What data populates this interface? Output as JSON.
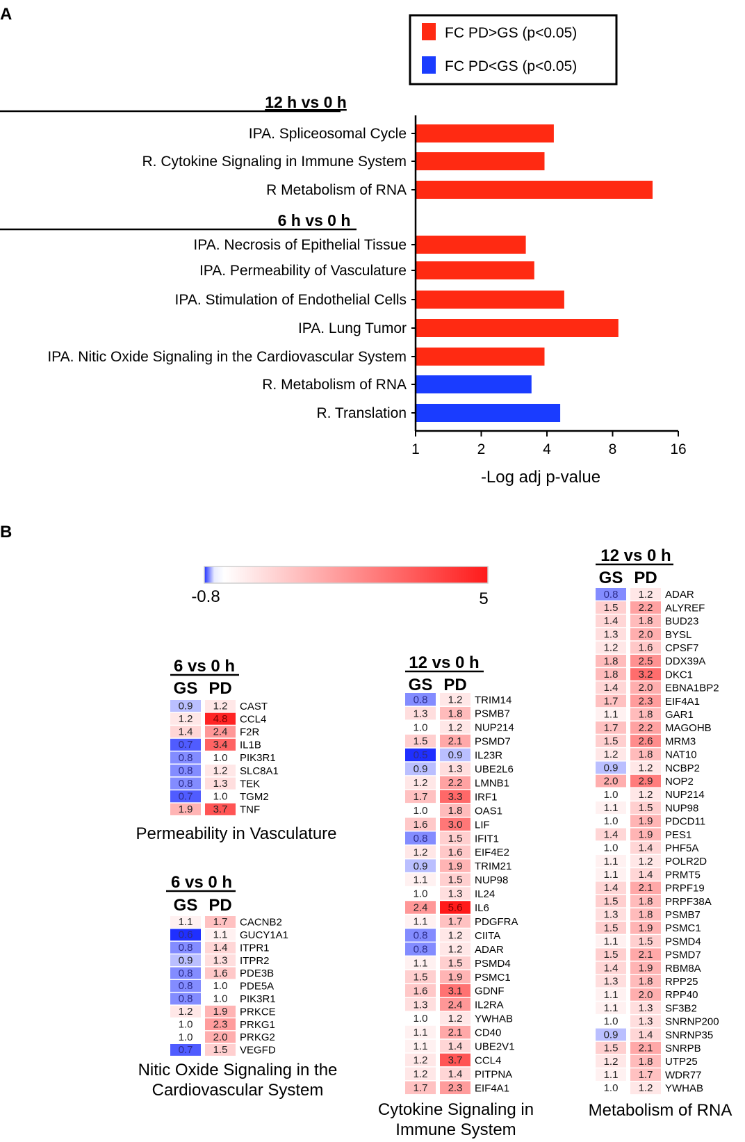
{
  "panel_a": {
    "letter": "A",
    "legend": [
      {
        "label": "FC PD>GS (p<0.05)",
        "color": "#ff2a12"
      },
      {
        "label": "FC PD<GS (p<0.05)",
        "color": "#1a3cff"
      }
    ],
    "group_titles": [
      "12 h vs 0 h",
      "6 h vs 0 h"
    ]
  },
  "panel_b": {
    "letter": "B",
    "colorbar": {
      "min_label": "-0.8",
      "max_label": "5",
      "min": -0.8,
      "max": 5,
      "low_color": "#1f2fff",
      "mid_color": "#ffffff",
      "high_color": "#ff1a1a"
    },
    "col_gs": "GS",
    "col_pd": "PD"
  },
  "chart_data": [
    {
      "type": "bar",
      "orientation": "horizontal",
      "xlabel": "-Log adj p-value",
      "xscale": "log2",
      "xlim": [
        1,
        16
      ],
      "xticks": [
        "1",
        "2",
        "4",
        "8",
        "16"
      ],
      "groups": [
        {
          "title": "12 h vs 0 h",
          "bars": [
            {
              "label": "IPA. Spliceosomal Cycle",
              "value": 4.3,
              "direction": "PD>GS"
            },
            {
              "label": "R. Cytokine Signaling in Immune System",
              "value": 3.9,
              "direction": "PD>GS"
            },
            {
              "label": "R Metabolism of RNA",
              "value": 12.2,
              "direction": "PD>GS"
            }
          ]
        },
        {
          "title": "6 h vs 0 h",
          "bars": [
            {
              "label": "IPA. Necrosis of Epithelial Tissue",
              "value": 3.2,
              "direction": "PD>GS"
            },
            {
              "label": "IPA. Permeability of Vasculature",
              "value": 3.5,
              "direction": "PD>GS"
            },
            {
              "label": "IPA. Stimulation of Endothelial Cells",
              "value": 4.8,
              "direction": "PD>GS"
            },
            {
              "label": "IPA. Lung Tumor",
              "value": 8.5,
              "direction": "PD>GS"
            },
            {
              "label": "IPA. Nitic Oxide Signaling in the Cardiovascular System",
              "value": 3.9,
              "direction": "PD>GS"
            },
            {
              "label": "R. Metabolism of RNA",
              "value": 3.4,
              "direction": "PD<GS"
            },
            {
              "label": "R. Translation",
              "value": 4.6,
              "direction": "PD<GS"
            }
          ]
        }
      ]
    },
    {
      "type": "heatmap",
      "header": "6 vs 0 h",
      "title": "Permeability in Vasculature",
      "columns": [
        "GS",
        "PD"
      ],
      "rows": [
        {
          "gene": "CAST",
          "gs": "0.9",
          "pd": "1.2"
        },
        {
          "gene": "CCL4",
          "gs": "1.2",
          "pd": "4.8"
        },
        {
          "gene": "F2R",
          "gs": "1.4",
          "pd": "2.4"
        },
        {
          "gene": "IL1B",
          "gs": "0.7",
          "pd": "3.4"
        },
        {
          "gene": "PIK3R1",
          "gs": "0.8",
          "pd": "1.0"
        },
        {
          "gene": "SLC8A1",
          "gs": "0.8",
          "pd": "1.2"
        },
        {
          "gene": "TEK",
          "gs": "0.8",
          "pd": "1.3"
        },
        {
          "gene": "TGM2",
          "gs": "0.7",
          "pd": "1.0"
        },
        {
          "gene": "TNF",
          "gs": "1.9",
          "pd": "3.7"
        }
      ]
    },
    {
      "type": "heatmap",
      "header": "6 vs 0 h",
      "title": "Nitic Oxide Signaling in the Cardiovascular System",
      "title_lines": [
        "Nitic Oxide Signaling in the",
        "Cardiovascular System"
      ],
      "columns": [
        "GS",
        "PD"
      ],
      "rows": [
        {
          "gene": "CACNB2",
          "gs": "1.1",
          "pd": "1.7"
        },
        {
          "gene": "GUCY1A1",
          "gs": "0.6",
          "pd": "1.1"
        },
        {
          "gene": "ITPR1",
          "gs": "0.8",
          "pd": "1.4"
        },
        {
          "gene": "ITPR2",
          "gs": "0.9",
          "pd": "1.3"
        },
        {
          "gene": "PDE3B",
          "gs": "0.8",
          "pd": "1.6"
        },
        {
          "gene": "PDE5A",
          "gs": "0.8",
          "pd": "1.0"
        },
        {
          "gene": "PIK3R1",
          "gs": "0.8",
          "pd": "1.0"
        },
        {
          "gene": "PRKCE",
          "gs": "1.2",
          "pd": "1.9"
        },
        {
          "gene": "PRKG1",
          "gs": "1.0",
          "pd": "2.3"
        },
        {
          "gene": "PRKG2",
          "gs": "1.0",
          "pd": "2.0"
        },
        {
          "gene": "VEGFD",
          "gs": "0.7",
          "pd": "1.5"
        }
      ]
    },
    {
      "type": "heatmap",
      "header": "12 vs 0 h",
      "title": "Cytokine Signaling in Immune System",
      "title_lines": [
        "Cytokine Signaling in",
        "Immune System"
      ],
      "columns": [
        "GS",
        "PD"
      ],
      "rows": [
        {
          "gene": "TRIM14",
          "gs": "0.8",
          "pd": "1.2"
        },
        {
          "gene": "PSMB7",
          "gs": "1.3",
          "pd": "1.8"
        },
        {
          "gene": "NUP214",
          "gs": "1.0",
          "pd": "1.2"
        },
        {
          "gene": "PSMD7",
          "gs": "1.5",
          "pd": "2.1"
        },
        {
          "gene": "IL23R",
          "gs": "0.5",
          "pd": "0.9"
        },
        {
          "gene": "UBE2L6",
          "gs": "0.9",
          "pd": "1.3"
        },
        {
          "gene": "LMNB1",
          "gs": "1.2",
          "pd": "2.2"
        },
        {
          "gene": "IRF1",
          "gs": "1.7",
          "pd": "3.3"
        },
        {
          "gene": "OAS1",
          "gs": "1.0",
          "pd": "1.8"
        },
        {
          "gene": "LIF",
          "gs": "1.6",
          "pd": "3.0"
        },
        {
          "gene": "IFIT1",
          "gs": "0.8",
          "pd": "1.5"
        },
        {
          "gene": "EIF4E2",
          "gs": "1.2",
          "pd": "1.6"
        },
        {
          "gene": "TRIM21",
          "gs": "0.9",
          "pd": "1.9"
        },
        {
          "gene": "NUP98",
          "gs": "1.1",
          "pd": "1.5"
        },
        {
          "gene": "IL24",
          "gs": "1.0",
          "pd": "1.3"
        },
        {
          "gene": "IL6",
          "gs": "2.4",
          "pd": "5.6"
        },
        {
          "gene": "PDGFRA",
          "gs": "1.1",
          "pd": "1.7"
        },
        {
          "gene": "CIITA",
          "gs": "0.8",
          "pd": "1.2"
        },
        {
          "gene": "ADAR",
          "gs": "0.8",
          "pd": "1.2"
        },
        {
          "gene": "PSMD4",
          "gs": "1.1",
          "pd": "1.5"
        },
        {
          "gene": "PSMC1",
          "gs": "1.5",
          "pd": "1.9"
        },
        {
          "gene": "GDNF",
          "gs": "1.6",
          "pd": "3.1"
        },
        {
          "gene": "IL2RA",
          "gs": "1.3",
          "pd": "2.4"
        },
        {
          "gene": "YWHAB",
          "gs": "1.0",
          "pd": "1.2"
        },
        {
          "gene": "CD40",
          "gs": "1.1",
          "pd": "2.1"
        },
        {
          "gene": "UBE2V1",
          "gs": "1.1",
          "pd": "1.4"
        },
        {
          "gene": "CCL4",
          "gs": "1.2",
          "pd": "3.7"
        },
        {
          "gene": "PITPNA",
          "gs": "1.2",
          "pd": "1.4"
        },
        {
          "gene": "EIF4A1",
          "gs": "1.7",
          "pd": "2.3"
        }
      ]
    },
    {
      "type": "heatmap",
      "header": "12 vs 0 h",
      "title": "Metabolism of RNA",
      "columns": [
        "GS",
        "PD"
      ],
      "rows": [
        {
          "gene": "ADAR",
          "gs": "0.8",
          "pd": "1.2"
        },
        {
          "gene": "ALYREF",
          "gs": "1.5",
          "pd": "2.2"
        },
        {
          "gene": "BUD23",
          "gs": "1.4",
          "pd": "1.8"
        },
        {
          "gene": "BYSL",
          "gs": "1.3",
          "pd": "2.0"
        },
        {
          "gene": "CPSF7",
          "gs": "1.2",
          "pd": "1.6"
        },
        {
          "gene": "DDX39A",
          "gs": "1.8",
          "pd": "2.5"
        },
        {
          "gene": "DKC1",
          "gs": "1.8",
          "pd": "3.2"
        },
        {
          "gene": "EBNA1BP2",
          "gs": "1.4",
          "pd": "2.0"
        },
        {
          "gene": "EIF4A1",
          "gs": "1.7",
          "pd": "2.3"
        },
        {
          "gene": "GAR1",
          "gs": "1.1",
          "pd": "1.8"
        },
        {
          "gene": "MAGOHB",
          "gs": "1.7",
          "pd": "2.2"
        },
        {
          "gene": "MRM3",
          "gs": "1.5",
          "pd": "2.6"
        },
        {
          "gene": "NAT10",
          "gs": "1.2",
          "pd": "1.8"
        },
        {
          "gene": "NCBP2",
          "gs": "0.9",
          "pd": "1.2"
        },
        {
          "gene": "NOP2",
          "gs": "2.0",
          "pd": "2.9"
        },
        {
          "gene": "NUP214",
          "gs": "1.0",
          "pd": "1.2"
        },
        {
          "gene": "NUP98",
          "gs": "1.1",
          "pd": "1.5"
        },
        {
          "gene": "PDCD11",
          "gs": "1.0",
          "pd": "1.9"
        },
        {
          "gene": "PES1",
          "gs": "1.4",
          "pd": "1.9"
        },
        {
          "gene": "PHF5A",
          "gs": "1.0",
          "pd": "1.4"
        },
        {
          "gene": "POLR2D",
          "gs": "1.1",
          "pd": "1.2"
        },
        {
          "gene": "PRMT5",
          "gs": "1.1",
          "pd": "1.4"
        },
        {
          "gene": "PRPF19",
          "gs": "1.4",
          "pd": "2.1"
        },
        {
          "gene": "PRPF38A",
          "gs": "1.5",
          "pd": "1.8"
        },
        {
          "gene": "PSMB7",
          "gs": "1.3",
          "pd": "1.8"
        },
        {
          "gene": "PSMC1",
          "gs": "1.5",
          "pd": "1.9"
        },
        {
          "gene": "PSMD4",
          "gs": "1.1",
          "pd": "1.5"
        },
        {
          "gene": "PSMD7",
          "gs": "1.5",
          "pd": "2.1"
        },
        {
          "gene": "RBM8A",
          "gs": "1.4",
          "pd": "1.9"
        },
        {
          "gene": "RPP25",
          "gs": "1.3",
          "pd": "1.8"
        },
        {
          "gene": "RPP40",
          "gs": "1.1",
          "pd": "2.0"
        },
        {
          "gene": "SF3B2",
          "gs": "1.1",
          "pd": "1.3"
        },
        {
          "gene": "SNRNP200",
          "gs": "1.0",
          "pd": "1.3"
        },
        {
          "gene": "SNRNP35",
          "gs": "0.9",
          "pd": "1.4"
        },
        {
          "gene": "SNRPB",
          "gs": "1.5",
          "pd": "2.1"
        },
        {
          "gene": "UTP25",
          "gs": "1.2",
          "pd": "1.8"
        },
        {
          "gene": "WDR77",
          "gs": "1.1",
          "pd": "1.7"
        },
        {
          "gene": "YWHAB",
          "gs": "1.0",
          "pd": "1.2"
        }
      ]
    }
  ]
}
